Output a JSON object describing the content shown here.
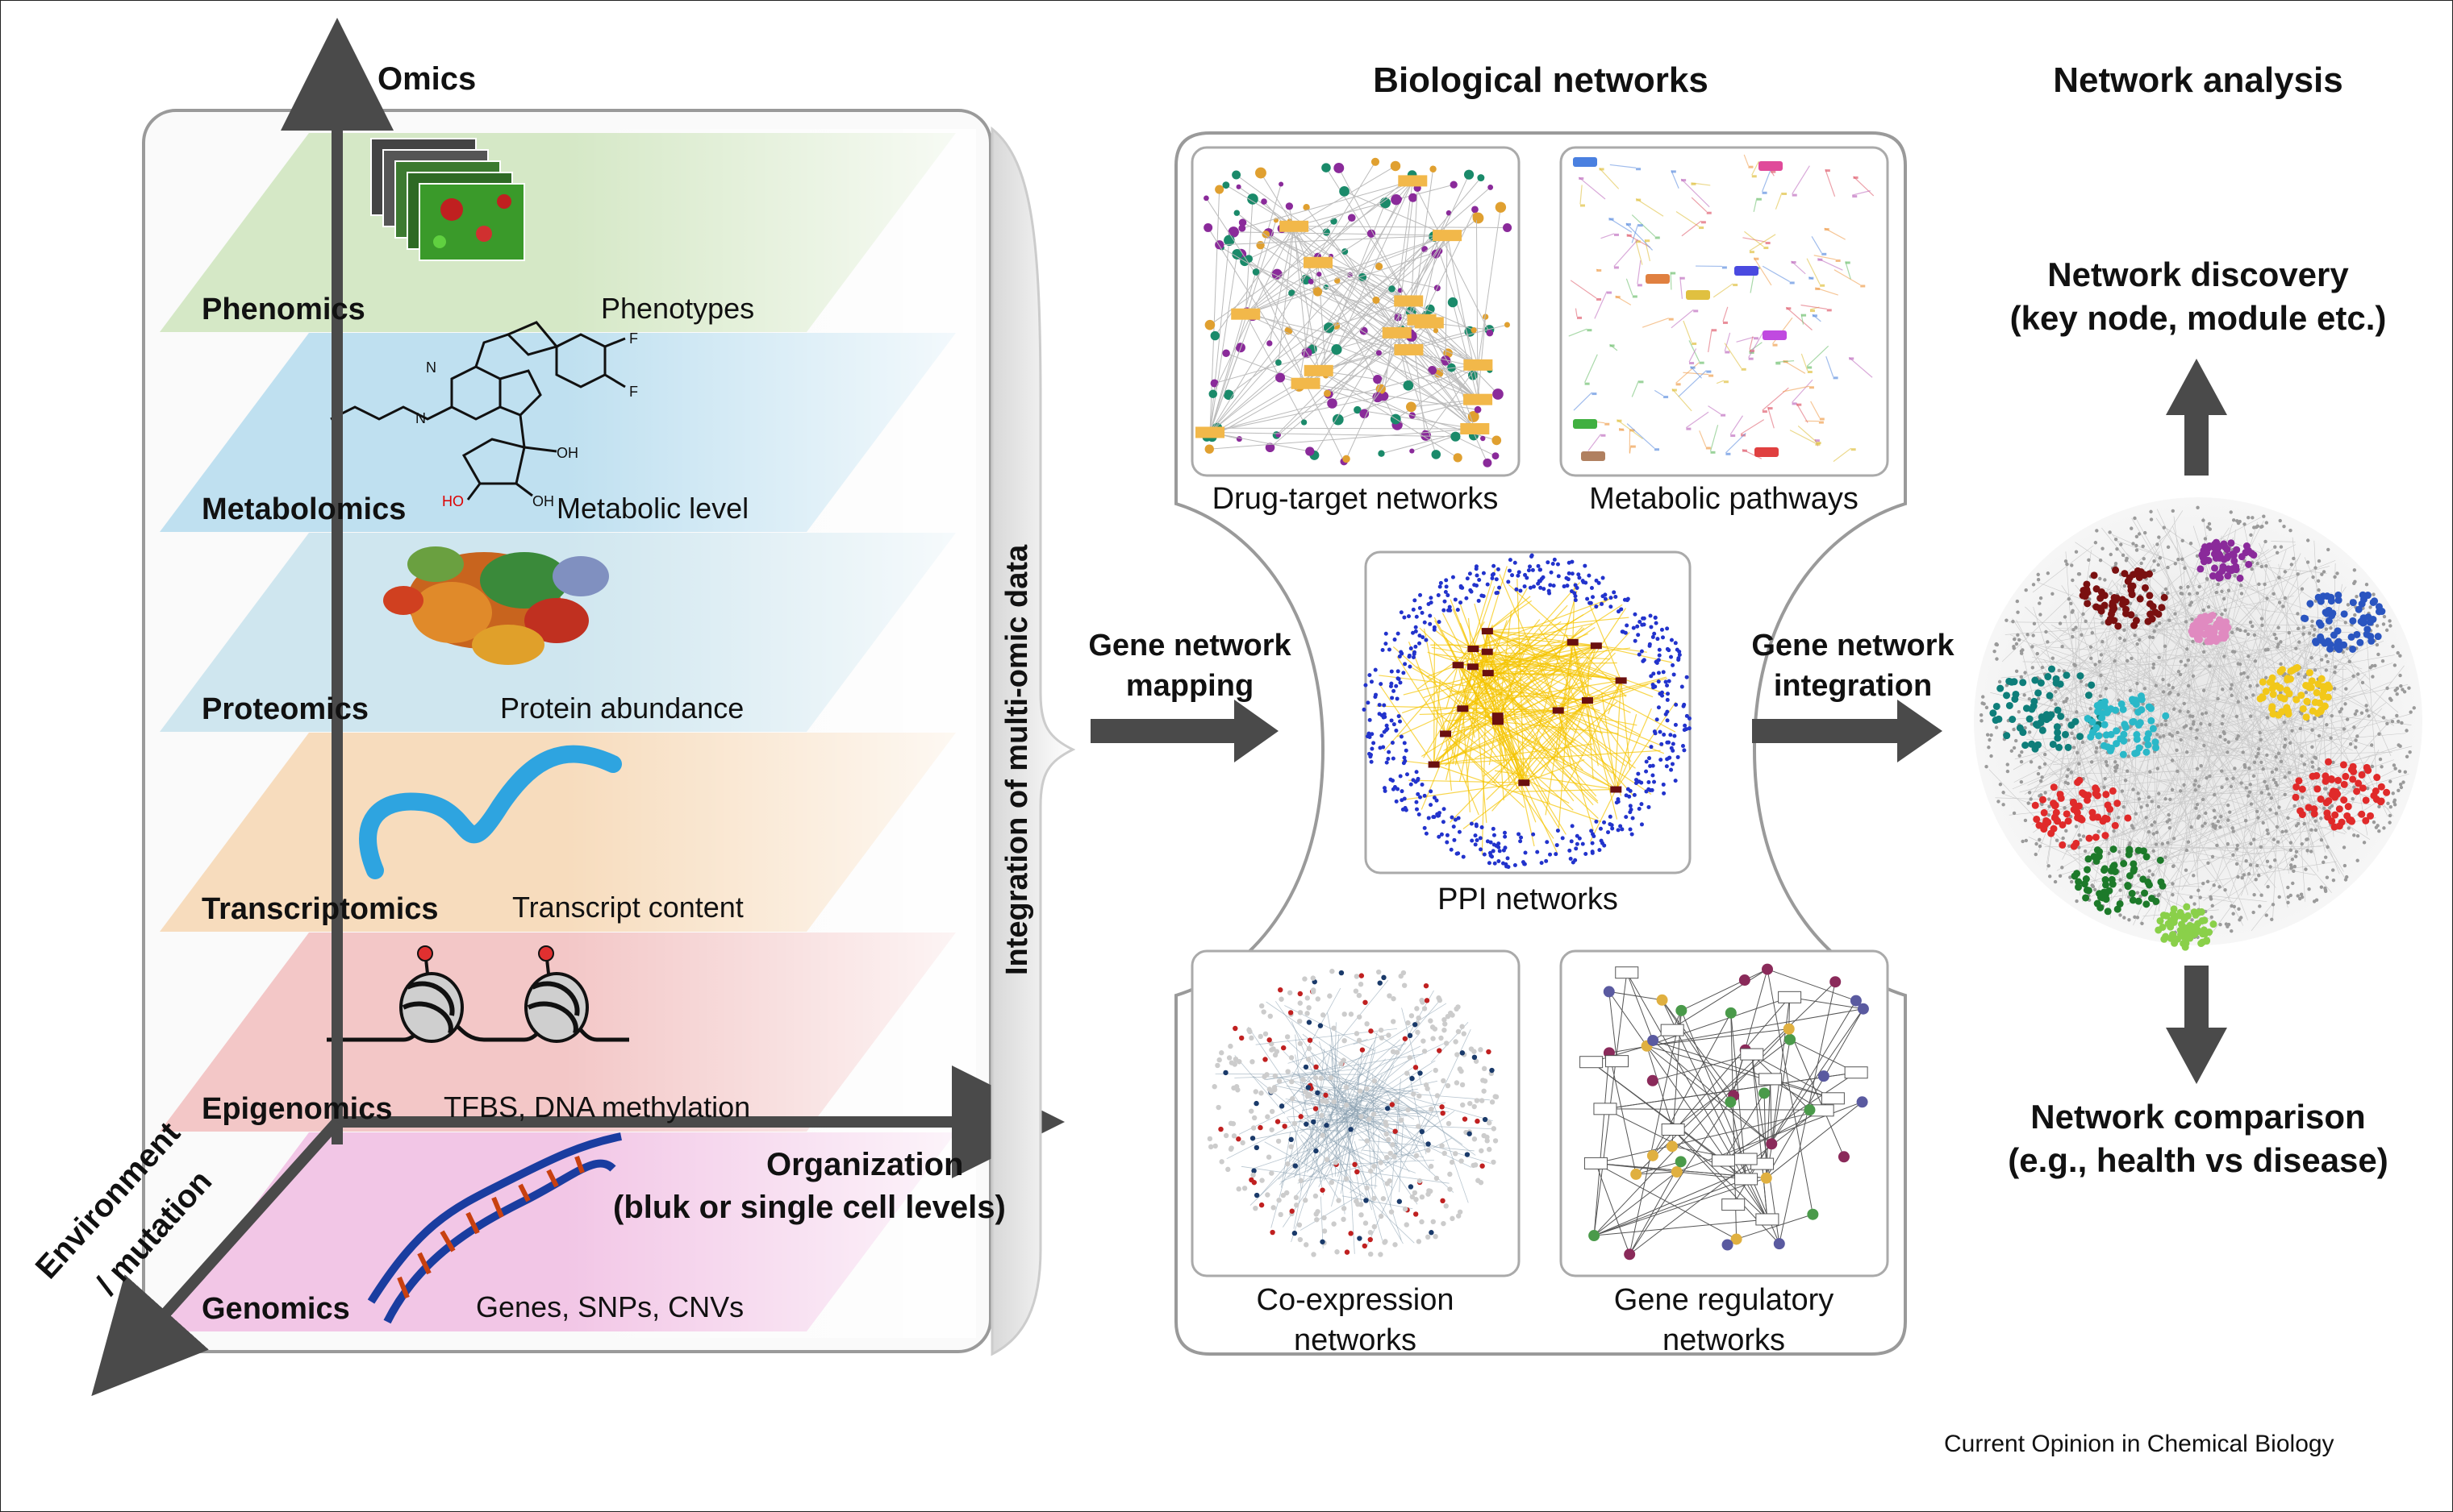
{
  "axes": {
    "omics": "Omics",
    "organization_line1": "Organization",
    "organization_line2": "(bluk or single cell levels)",
    "environment_line1": "Environment",
    "environment_line2": "/ mutation"
  },
  "layers": [
    {
      "name": "Phenomics",
      "desc": "Phenotypes",
      "color": "#d5e8c6"
    },
    {
      "name": "Metabolomics",
      "desc": "Metabolic level",
      "color": "#bfe0f0"
    },
    {
      "name": "Proteomics",
      "desc": "Protein abundance",
      "color": "#cfe6ef"
    },
    {
      "name": "Transcriptomics",
      "desc": "Transcript content",
      "color": "#f7dcbd"
    },
    {
      "name": "Epigenomics",
      "desc": "TFBS, DNA methylation",
      "color": "#f3c7c7"
    },
    {
      "name": "Genomics",
      "desc": "Genes, SNPs, CNVs",
      "color": "#f2c6e6"
    }
  ],
  "integration_label": "Integration of multi-omic data",
  "arrows": {
    "mapping_line1": "Gene network",
    "mapping_line2": "mapping",
    "integration_line1": "Gene network",
    "integration_line2": "integration"
  },
  "biological": {
    "title": "Biological networks",
    "panels": {
      "drug_target": "Drug-target networks",
      "metabolic": "Metabolic pathways",
      "ppi": "PPI networks",
      "coexpression_line1": "Co-expression",
      "coexpression_line2": "networks",
      "regulatory_line1": "Gene regulatory",
      "regulatory_line2": "networks"
    }
  },
  "analysis": {
    "title": "Network analysis",
    "discovery_line1": "Network discovery",
    "discovery_line2": "(key node, module etc.)",
    "comparison_line1": "Network comparison",
    "comparison_line2": "(e.g., health vs disease)"
  },
  "footer": "Current Opinion in Chemical Biology",
  "colors": {
    "axis": "#4a4a4a",
    "ppi_edges": "#f5c400",
    "ppi_nodes": "#2233cc",
    "module_colors": [
      "#7a1010",
      "#8a2a9a",
      "#2a55c0",
      "#f2c81a",
      "#e02a2a",
      "#0e7e7a",
      "#2ab8c8",
      "#1d7a2a",
      "#8ad04a",
      "#e08ac0"
    ]
  }
}
